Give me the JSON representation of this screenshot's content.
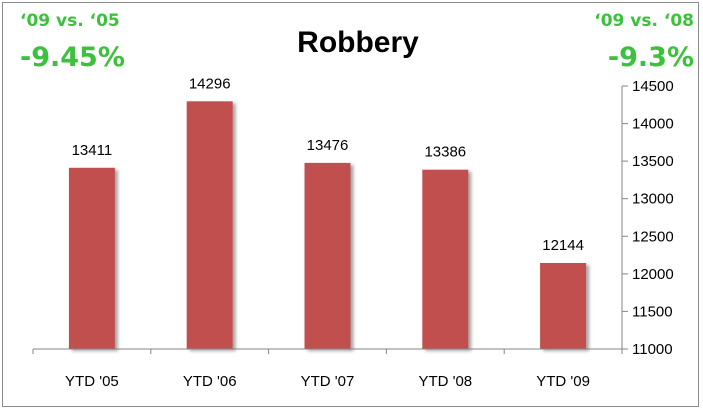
{
  "chart_data": {
    "type": "bar",
    "title": "Robbery",
    "categories": [
      "YTD '05",
      "YTD '06",
      "YTD '07",
      "YTD '08",
      "YTD '09"
    ],
    "values": [
      13411,
      14296,
      13476,
      13386,
      12144
    ],
    "ylim": [
      11000,
      14500
    ],
    "yticks": [
      11000,
      11500,
      12000,
      12500,
      13000,
      13500,
      14000,
      14500
    ],
    "y_axis_side": "right",
    "grid": false,
    "bar_color": "#c0504d"
  },
  "annotations": {
    "left": {
      "label": "‘09 vs. ‘05",
      "value": "-9.45%"
    },
    "right": {
      "label": "‘09 vs. ‘08",
      "value": "-9.3%"
    },
    "color": "#3cc13c"
  }
}
